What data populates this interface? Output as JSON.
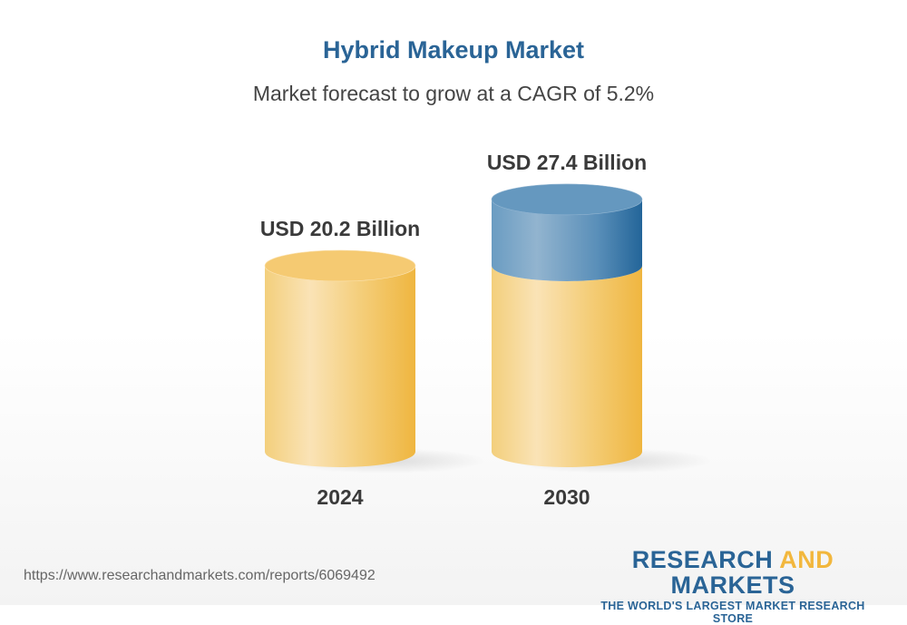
{
  "chart_data": {
    "type": "bar",
    "style": "3d-cylinder",
    "title": "Hybrid Makeup Market",
    "subtitle": "Market forecast to grow at a CAGR of 5.2%",
    "categories": [
      "2024",
      "2030"
    ],
    "values": [
      20.2,
      27.4
    ],
    "data_labels": [
      "USD 20.2 Billion",
      "USD 27.4 Billion"
    ],
    "unit": "USD Billion",
    "grid": false,
    "colors": {
      "base": "#f2c45a",
      "growth": "#3f7fb0"
    }
  },
  "footer": {
    "url": "https://www.researchandmarkets.com/reports/6069492",
    "logo_part1": "RESEARCH ",
    "logo_part2": "AND",
    "logo_part3": " MARKETS",
    "logo_tagline": "THE WORLD'S LARGEST MARKET RESEARCH STORE"
  }
}
